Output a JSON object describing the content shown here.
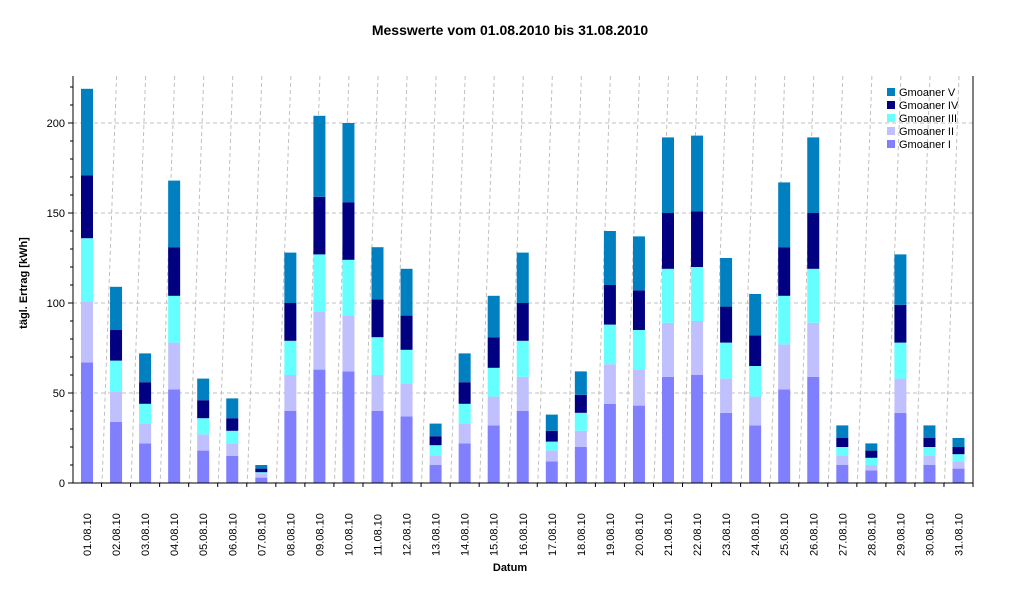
{
  "chart_data": {
    "type": "bar",
    "stacked": true,
    "title": "Messwerte vom 01.08.2010 bis 31.08.2010",
    "xlabel": "Datum",
    "ylabel": "tägl. Ertrag [kWh]",
    "ylim": [
      0,
      222
    ],
    "yticks": [
      0,
      50,
      100,
      150,
      200
    ],
    "grid": true,
    "legend_position": "top-right",
    "categories": [
      "01.08.10",
      "02.08.10",
      "03.08.10",
      "04.08.10",
      "05.08.10",
      "06.08.10",
      "07.08.10",
      "08.08.10",
      "09.08.10",
      "10.08.10",
      "11.08.10",
      "12.08.10",
      "13.08.10",
      "14.08.10",
      "15.08.10",
      "16.08.10",
      "17.08.10",
      "18.08.10",
      "19.08.10",
      "20.08.10",
      "21.08.10",
      "22.08.10",
      "23.08.10",
      "24.08.10",
      "25.08.10",
      "26.08.10",
      "27.08.10",
      "28.08.10",
      "29.08.10",
      "30.08.10",
      "31.08.10"
    ],
    "series": [
      {
        "name": "Gmoaner I",
        "color": "#8080ff",
        "values": [
          67,
          34,
          22,
          52,
          18,
          15,
          3,
          40,
          63,
          62,
          40,
          37,
          10,
          22,
          32,
          40,
          12,
          20,
          44,
          43,
          59,
          60,
          39,
          32,
          52,
          59,
          10,
          7,
          39,
          10,
          8
        ]
      },
      {
        "name": "Gmoaner II",
        "color": "#c0c0ff",
        "values": [
          34,
          17,
          11,
          26,
          9,
          7,
          2,
          20,
          32,
          31,
          20,
          18,
          5,
          11,
          16,
          19,
          6,
          9,
          22,
          20,
          30,
          30,
          19,
          16,
          25,
          30,
          5,
          3,
          19,
          5,
          4
        ]
      },
      {
        "name": "Gmoaner III",
        "color": "#66ffff",
        "values": [
          35,
          17,
          11,
          26,
          9,
          7,
          1,
          19,
          32,
          31,
          21,
          19,
          6,
          11,
          16,
          20,
          5,
          10,
          22,
          22,
          30,
          30,
          20,
          17,
          27,
          30,
          5,
          4,
          20,
          5,
          4
        ]
      },
      {
        "name": "Gmoaner IV",
        "color": "#000080",
        "values": [
          35,
          17,
          12,
          27,
          10,
          7,
          2,
          21,
          32,
          32,
          21,
          19,
          5,
          12,
          17,
          21,
          6,
          10,
          22,
          22,
          31,
          31,
          20,
          17,
          27,
          31,
          5,
          4,
          21,
          5,
          4
        ]
      },
      {
        "name": "Gmoaner V",
        "color": "#0080c0",
        "values": [
          48,
          24,
          16,
          37,
          12,
          11,
          2,
          28,
          45,
          44,
          29,
          26,
          7,
          16,
          23,
          28,
          9,
          13,
          30,
          30,
          42,
          42,
          27,
          23,
          36,
          42,
          7,
          4,
          28,
          7,
          5
        ]
      }
    ]
  }
}
